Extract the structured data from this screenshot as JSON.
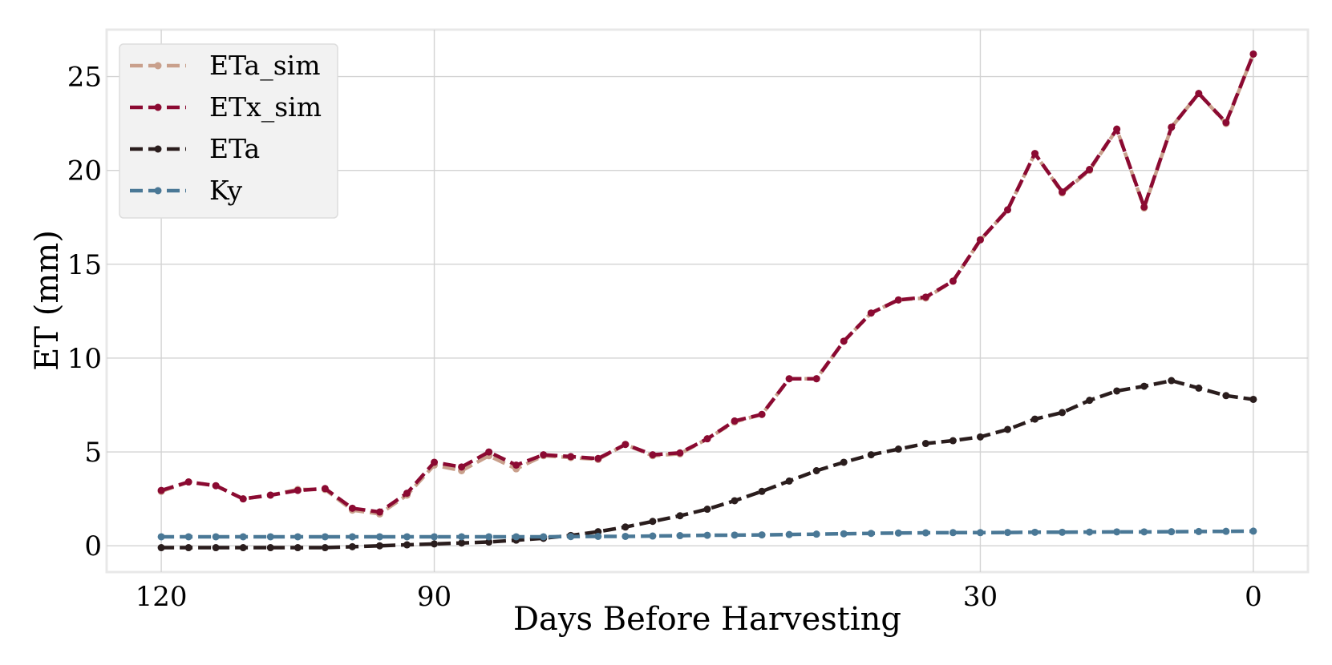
{
  "chart_data": {
    "type": "line",
    "xlabel": "Days Before Harvesting",
    "ylabel": "ET (mm)",
    "xlim": [
      126,
      -6
    ],
    "ylim": [
      -1.4,
      27.5
    ],
    "x_axis_reversed": true,
    "xticks": [
      120,
      90,
      30,
      0
    ],
    "yticks": [
      0,
      5,
      10,
      15,
      20,
      25
    ],
    "grid": true,
    "legend_position": "top-left",
    "x": [
      120,
      117,
      114,
      111,
      108,
      105,
      102,
      99,
      96,
      93,
      90,
      87,
      84,
      81,
      78,
      75,
      72,
      69,
      66,
      63,
      60,
      57,
      54,
      51,
      48,
      45,
      42,
      39,
      36,
      33,
      30,
      27,
      24,
      21,
      18,
      15,
      12,
      9,
      6,
      3,
      0
    ],
    "series": [
      {
        "name": "ETa_sim",
        "color": "#c9a08c",
        "values": [
          2.9,
          3.4,
          3.2,
          2.5,
          2.7,
          3.0,
          3.0,
          1.9,
          1.7,
          2.7,
          4.3,
          4.0,
          4.8,
          4.1,
          4.8,
          4.7,
          4.6,
          5.4,
          4.8,
          4.9,
          5.7,
          6.6,
          7.0,
          8.9,
          8.9,
          10.9,
          12.4,
          13.1,
          13.2,
          14.1,
          16.3,
          17.9,
          20.9,
          18.8,
          20.0,
          22.2,
          18.0,
          22.3,
          24.1,
          22.5,
          26.2
        ]
      },
      {
        "name": "ETx_sim",
        "color": "#8b0a32",
        "values": [
          2.95,
          3.4,
          3.2,
          2.5,
          2.7,
          2.95,
          3.05,
          2.0,
          1.8,
          2.8,
          4.45,
          4.2,
          5.0,
          4.3,
          4.85,
          4.75,
          4.65,
          5.4,
          4.85,
          4.95,
          5.7,
          6.65,
          7.0,
          8.9,
          8.9,
          10.9,
          12.4,
          13.1,
          13.25,
          14.1,
          16.3,
          17.9,
          20.9,
          18.85,
          20.05,
          22.2,
          18.05,
          22.3,
          24.1,
          22.55,
          26.2
        ]
      },
      {
        "name": "ETa",
        "color": "#2a1d1d",
        "values": [
          -0.1,
          -0.1,
          -0.1,
          -0.1,
          -0.1,
          -0.1,
          -0.1,
          -0.05,
          0.0,
          0.05,
          0.1,
          0.15,
          0.2,
          0.3,
          0.4,
          0.55,
          0.75,
          1.0,
          1.3,
          1.6,
          1.95,
          2.4,
          2.9,
          3.45,
          4.0,
          4.45,
          4.85,
          5.15,
          5.45,
          5.6,
          5.8,
          6.2,
          6.75,
          7.1,
          7.75,
          8.25,
          8.5,
          8.8,
          8.4,
          8.0,
          7.8
        ]
      },
      {
        "name": "Ky",
        "color": "#4a7896",
        "values": [
          0.48,
          0.48,
          0.48,
          0.48,
          0.48,
          0.48,
          0.48,
          0.48,
          0.48,
          0.48,
          0.48,
          0.48,
          0.48,
          0.48,
          0.48,
          0.49,
          0.5,
          0.5,
          0.52,
          0.54,
          0.56,
          0.57,
          0.58,
          0.6,
          0.62,
          0.64,
          0.66,
          0.68,
          0.69,
          0.7,
          0.7,
          0.71,
          0.72,
          0.72,
          0.73,
          0.74,
          0.74,
          0.75,
          0.76,
          0.77,
          0.78
        ]
      }
    ]
  }
}
